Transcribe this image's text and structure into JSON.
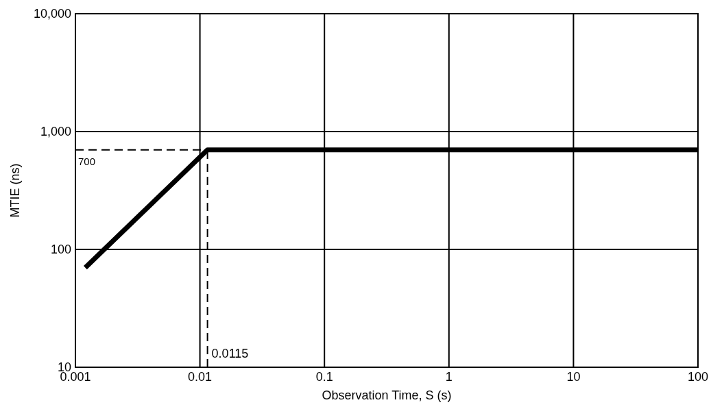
{
  "chart_data": {
    "type": "line",
    "xlabel": "Observation Time, S (s)",
    "ylabel": "MTIE (ns)",
    "log": "xy",
    "grid": true,
    "line_style": "solid",
    "marker": "none",
    "xlim": [
      0.001,
      100
    ],
    "ylim": [
      10,
      10000
    ],
    "xticks": [
      0.001,
      0.01,
      0.1,
      1,
      10,
      100
    ],
    "yticks": [
      10,
      100,
      {
        "value": 1000,
        "label": "1,000"
      },
      {
        "value": 10000,
        "label": "10,000"
      }
    ],
    "series": [
      {
        "color": "#000000",
        "x": [
          0.0012,
          0.0115,
          100
        ],
        "values": [
          70,
          700,
          700
        ]
      }
    ],
    "ref_lines": [
      {
        "axis": "y",
        "value": 700,
        "label": "700",
        "line_style": "dashed",
        "color": "#000000"
      },
      {
        "axis": "x",
        "value": 0.0115,
        "label": "0.0115",
        "line_style": "dashed",
        "color": "#000000"
      }
    ]
  }
}
